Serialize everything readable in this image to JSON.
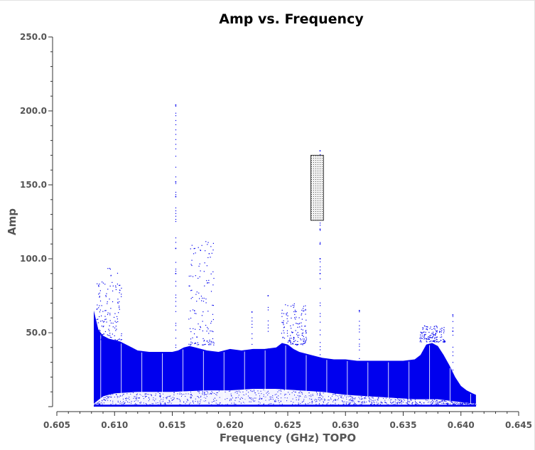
{
  "chart_data": {
    "type": "scatter",
    "title": "Amp vs. Frequency",
    "xlabel": "Frequency (GHz) TOPO",
    "ylabel": "Amp",
    "xlim": [
      0.605,
      0.645
    ],
    "ylim": [
      0,
      250
    ],
    "xticks": [
      "0.605",
      "0.610",
      "0.615",
      "0.620",
      "0.625",
      "0.630",
      "0.635",
      "0.640",
      "0.645"
    ],
    "yticks": [
      "50.0",
      "100.0",
      "150.0",
      "200.0",
      "250.0"
    ],
    "grid": false,
    "colors": {
      "points": "#0000ee",
      "axis": "#333333",
      "text": "#555555"
    },
    "series": [
      {
        "upper_envelope": {
          "x": [
            0.6082,
            0.6086,
            0.609,
            0.6095,
            0.61,
            0.6105,
            0.611,
            0.6115,
            0.612,
            0.613,
            0.614,
            0.615,
            0.6155,
            0.616,
            0.6165,
            0.617,
            0.6175,
            0.618,
            0.619,
            0.62,
            0.621,
            0.622,
            0.623,
            0.624,
            0.6245,
            0.625,
            0.6255,
            0.626,
            0.627,
            0.628,
            0.629,
            0.63,
            0.631,
            0.632,
            0.633,
            0.634,
            0.635,
            0.636,
            0.6365,
            0.637,
            0.6375,
            0.638,
            0.6385,
            0.639,
            0.6395,
            0.64,
            0.6405,
            0.641,
            0.6413
          ],
          "y": [
            65,
            52,
            48,
            46,
            45,
            44,
            42,
            40,
            38,
            37,
            37,
            37,
            38,
            40,
            41,
            40,
            39,
            38,
            37,
            39,
            38,
            39,
            39,
            40,
            43,
            42,
            39,
            37,
            35,
            33,
            32,
            32,
            31,
            31,
            31,
            31,
            31,
            32,
            35,
            42,
            43,
            41,
            35,
            28,
            20,
            14,
            11,
            9,
            8
          ]
        },
        "lower_envelope": {
          "x": [
            0.6082,
            0.609,
            0.61,
            0.612,
            0.615,
            0.618,
            0.62,
            0.622,
            0.624,
            0.626,
            0.628,
            0.63,
            0.632,
            0.634,
            0.636,
            0.638,
            0.639,
            0.64,
            0.6413
          ],
          "y": [
            2,
            7,
            9,
            10,
            10,
            11,
            11,
            12,
            12,
            11,
            10,
            8,
            7,
            6,
            5,
            5,
            4,
            3,
            2
          ]
        },
        "spikes": [
          {
            "x": 0.6153,
            "y": 204
          },
          {
            "x": 0.6153,
            "y": 152
          },
          {
            "x": 0.6153,
            "y": 142
          },
          {
            "x": 0.6153,
            "y": 107
          },
          {
            "x": 0.6153,
            "y": 90
          },
          {
            "x": 0.6278,
            "y": 173
          },
          {
            "x": 0.6278,
            "y": 163
          },
          {
            "x": 0.6278,
            "y": 150
          },
          {
            "x": 0.6278,
            "y": 140
          },
          {
            "x": 0.6278,
            "y": 130
          },
          {
            "x": 0.6278,
            "y": 120
          },
          {
            "x": 0.6278,
            "y": 110
          },
          {
            "x": 0.6278,
            "y": 100
          },
          {
            "x": 0.6278,
            "y": 90
          },
          {
            "x": 0.6219,
            "y": 64
          },
          {
            "x": 0.6312,
            "y": 65
          },
          {
            "x": 0.6233,
            "y": 75
          },
          {
            "x": 0.6393,
            "y": 62
          },
          {
            "x": 0.6393,
            "y": 51
          }
        ],
        "scatter_clusters": [
          {
            "x_center": 0.6095,
            "y_min": 45,
            "y_max": 94
          },
          {
            "x_center": 0.6175,
            "y_min": 42,
            "y_max": 112
          },
          {
            "x_center": 0.6255,
            "y_min": 42,
            "y_max": 70
          },
          {
            "x_center": 0.6375,
            "y_min": 44,
            "y_max": 55
          }
        ]
      }
    ],
    "annotation_box": {
      "x_min": 0.627,
      "x_max": 0.6281,
      "y_min": 126,
      "y_max": 170
    }
  }
}
